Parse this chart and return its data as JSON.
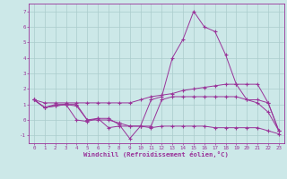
{
  "xlabel": "Windchill (Refroidissement éolien,°C)",
  "xlim": [
    -0.5,
    23.5
  ],
  "ylim": [
    -1.5,
    7.5
  ],
  "yticks": [
    -1,
    0,
    1,
    2,
    3,
    4,
    5,
    6,
    7
  ],
  "xticks": [
    0,
    1,
    2,
    3,
    4,
    5,
    6,
    7,
    8,
    9,
    10,
    11,
    12,
    13,
    14,
    15,
    16,
    17,
    18,
    19,
    20,
    21,
    22,
    23
  ],
  "background_color": "#cce8e8",
  "grid_color": "#aacccc",
  "line_color": "#993399",
  "lines": [
    [
      1.3,
      0.8,
      0.9,
      1.0,
      0.9,
      0.0,
      0.1,
      0.1,
      -0.3,
      -1.2,
      -0.4,
      1.3,
      1.5,
      4.0,
      5.2,
      7.0,
      6.0,
      5.7,
      4.2,
      2.3,
      1.3,
      1.1,
      0.5,
      -0.7
    ],
    [
      1.3,
      0.8,
      1.0,
      1.0,
      1.0,
      0.0,
      0.0,
      0.0,
      -0.2,
      -0.4,
      -0.4,
      -0.4,
      1.3,
      1.5,
      1.5,
      1.5,
      1.5,
      1.5,
      1.5,
      1.5,
      1.3,
      1.3,
      1.1,
      -0.7
    ],
    [
      1.3,
      1.1,
      1.1,
      1.1,
      1.1,
      1.1,
      1.1,
      1.1,
      1.1,
      1.1,
      1.3,
      1.5,
      1.6,
      1.7,
      1.9,
      2.0,
      2.1,
      2.2,
      2.3,
      2.3,
      2.3,
      2.3,
      1.1,
      -0.7
    ],
    [
      1.3,
      0.8,
      0.9,
      1.0,
      0.0,
      -0.1,
      0.1,
      -0.5,
      -0.4,
      -0.4,
      -0.4,
      -0.5,
      -0.4,
      -0.4,
      -0.4,
      -0.4,
      -0.4,
      -0.5,
      -0.5,
      -0.5,
      -0.5,
      -0.5,
      -0.7,
      -0.9
    ]
  ],
  "marker_style": "+",
  "linewidth": 0.7,
  "markersize": 3.5,
  "tick_fontsize": 4.2,
  "xlabel_fontsize": 5.2
}
